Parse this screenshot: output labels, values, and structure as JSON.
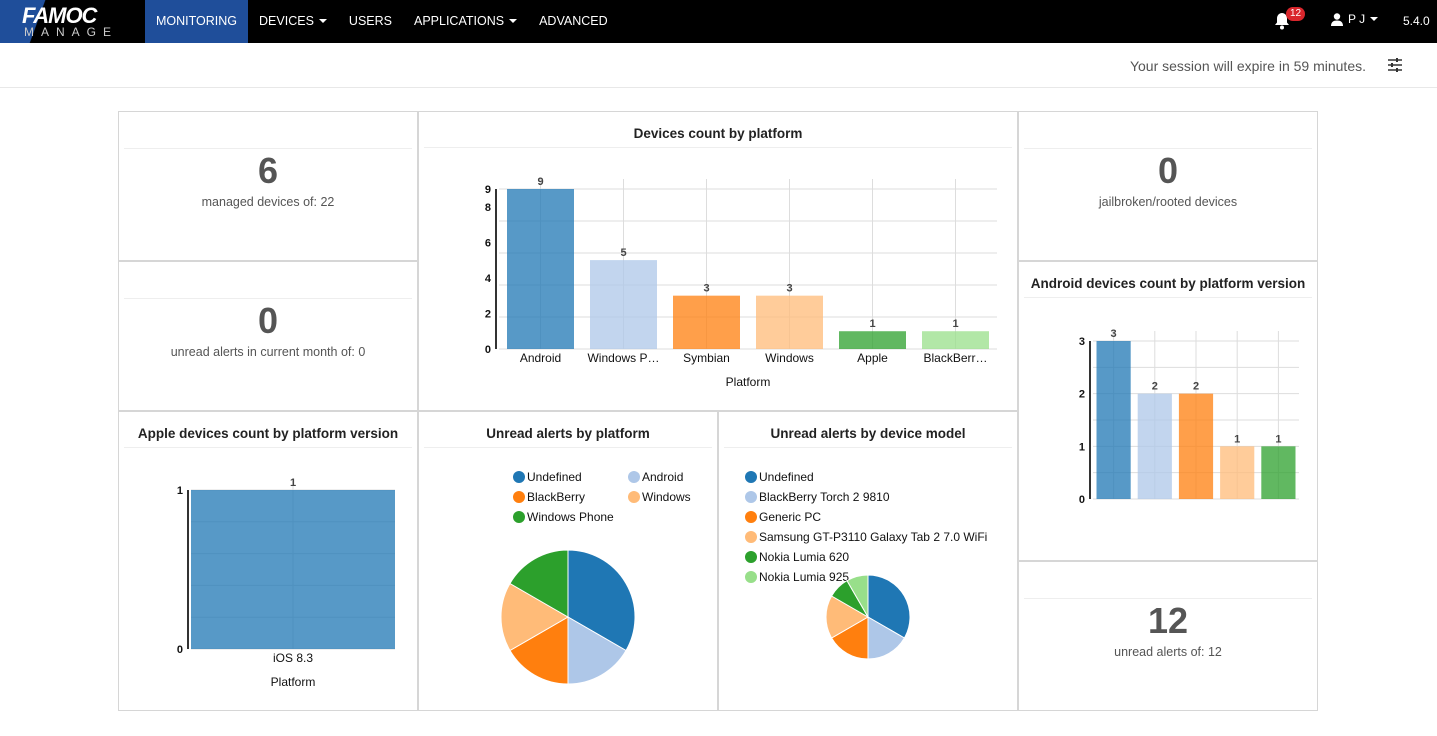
{
  "app": {
    "logo_top": "FAMOC",
    "logo_bottom": "MANAGE",
    "version": "5.4.0"
  },
  "nav": [
    {
      "label": "MONITORING",
      "active": true,
      "dropdown": false
    },
    {
      "label": "DEVICES",
      "active": false,
      "dropdown": true
    },
    {
      "label": "USERS",
      "active": false,
      "dropdown": false
    },
    {
      "label": "APPLICATIONS",
      "active": false,
      "dropdown": true
    },
    {
      "label": "ADVANCED",
      "active": false,
      "dropdown": false
    }
  ],
  "header": {
    "notifications_count": "12",
    "user_initials": "P J",
    "session_text": "Your session will expire in 59 minutes."
  },
  "tiles": {
    "managed": {
      "value": "6",
      "label": "managed devices of: 22"
    },
    "unread_month": {
      "value": "0",
      "label": "unread alerts in current month of: 0"
    },
    "jailbroken": {
      "value": "0",
      "label": "jailbroken/rooted devices"
    },
    "unread_total": {
      "value": "12",
      "label": "unread alerts of: 12"
    }
  },
  "colors": {
    "blue": "#1f77b4",
    "lightblue": "#aec7e8",
    "orange": "#ff7f0e",
    "lightorange": "#ffbb78",
    "green": "#2ca02c",
    "lightgreen": "#98df8a",
    "nav_active": "#1f4e9a",
    "badge": "#d9262c"
  },
  "chart_data": [
    {
      "id": "platform",
      "type": "bar",
      "title": "Devices count by platform",
      "xlabel": "Platform",
      "ylabel": "",
      "categories": [
        "Android",
        "Windows P…",
        "Symbian",
        "Windows",
        "Apple",
        "BlackBerr…"
      ],
      "values": [
        9,
        5,
        3,
        3,
        1,
        1
      ],
      "yticks": [
        0,
        2,
        4,
        6,
        8,
        9
      ],
      "ylim": [
        0,
        9
      ],
      "grid": true
    },
    {
      "id": "android",
      "type": "bar",
      "title": "Android devices count by platform version",
      "xlabel": "",
      "ylabel": "",
      "categories": [
        "",
        "",
        "",
        "",
        ""
      ],
      "values": [
        3,
        2,
        2,
        1,
        1
      ],
      "yticks": [
        0,
        1,
        2,
        3
      ],
      "ylim": [
        0,
        3
      ],
      "grid": true
    },
    {
      "id": "apple",
      "type": "bar",
      "title": "Apple devices count by platform version",
      "xlabel": "Platform",
      "ylabel": "",
      "categories": [
        "iOS 8.3"
      ],
      "values": [
        1
      ],
      "yticks": [
        0,
        1
      ],
      "ylim": [
        0,
        1
      ],
      "grid": true
    },
    {
      "id": "alerts_platform",
      "type": "pie",
      "title": "Unread alerts by platform",
      "labels": [
        "Undefined",
        "Android",
        "BlackBerry",
        "Windows",
        "Windows Phone"
      ],
      "values": [
        4,
        2,
        2,
        2,
        2
      ],
      "legend": "top"
    },
    {
      "id": "alerts_model",
      "type": "pie",
      "title": "Unread alerts by device model",
      "labels": [
        "Undefined",
        "BlackBerry Torch 2 9810",
        "Generic PC",
        "Samsung GT-P3110 Galaxy Tab 2 7.0 WiFi",
        "Nokia Lumia 620",
        "Nokia Lumia 925"
      ],
      "values": [
        4,
        2,
        2,
        2,
        1,
        1
      ],
      "legend": "top"
    }
  ]
}
